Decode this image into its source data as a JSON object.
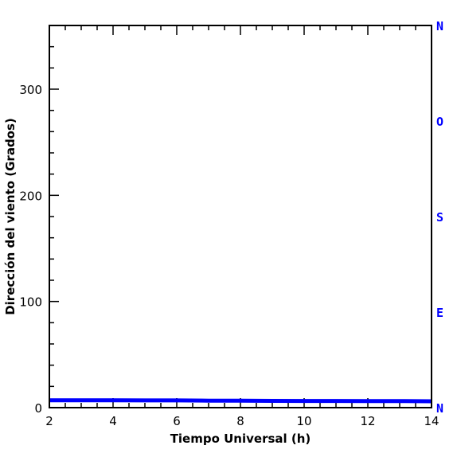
{
  "chart_data": {
    "type": "line",
    "title": "",
    "xlabel": "Tiempo Universal (h)",
    "ylabel": "Dirección del viento (Grados)",
    "xlim": [
      2,
      14
    ],
    "ylim": [
      0,
      360
    ],
    "x_ticks": [
      "2",
      "4",
      "6",
      "8",
      "10",
      "12",
      "14"
    ],
    "y_ticks": [
      "0",
      "100",
      "200",
      "300"
    ],
    "right_axis_labels": [
      {
        "label": "N",
        "value": 0
      },
      {
        "label": "E",
        "value": 90
      },
      {
        "label": "S",
        "value": 180
      },
      {
        "label": "O",
        "value": 270
      },
      {
        "label": "N",
        "value": 360
      }
    ],
    "grid": false,
    "series": [
      {
        "color": "#0000ff",
        "x": [
          2,
          3,
          4,
          5,
          6,
          7,
          8,
          9,
          10,
          11,
          12,
          13,
          14
        ],
        "values": [
          7,
          7,
          7,
          6.8,
          6.8,
          6.6,
          6.5,
          6.4,
          6.3,
          6.3,
          6.2,
          6.2,
          6
        ]
      }
    ],
    "colors": {
      "axis": "#000000",
      "series": "#0000ff",
      "compass": "#0000ff"
    }
  }
}
